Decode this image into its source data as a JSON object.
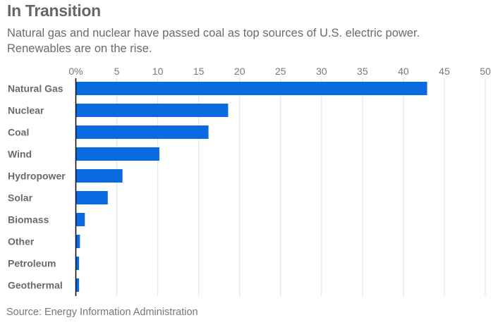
{
  "chart_data": {
    "type": "bar",
    "orientation": "horizontal",
    "title": "In Transition",
    "subtitle_lines": [
      "Natural gas and nuclear have passed coal as top sources of U.S. electric power.",
      "Renewables are on the rise."
    ],
    "source": "Source: Energy Information Administration",
    "categories": [
      "Natural Gas",
      "Nuclear",
      "Coal",
      "Wind",
      "Hydropower",
      "Solar",
      "Biomass",
      "Other",
      "Petroleum",
      "Geothermal"
    ],
    "values": [
      42.9,
      18.6,
      16.2,
      10.2,
      5.7,
      3.9,
      1.1,
      0.5,
      0.4,
      0.4
    ],
    "xlabel": "",
    "ylabel": "",
    "xlim": [
      0,
      50
    ],
    "xticks": [
      0,
      5,
      10,
      15,
      20,
      25,
      30,
      35,
      40,
      45,
      50
    ],
    "xtick_labels": [
      "0%",
      "5",
      "10",
      "15",
      "20",
      "25",
      "30",
      "35",
      "40",
      "45",
      "50"
    ],
    "x_axis_position": "top",
    "grid": true,
    "legend": "none",
    "colors": {
      "bar": "#0a6be0",
      "grid": "#e6e6e6",
      "axis": "#000000"
    }
  }
}
